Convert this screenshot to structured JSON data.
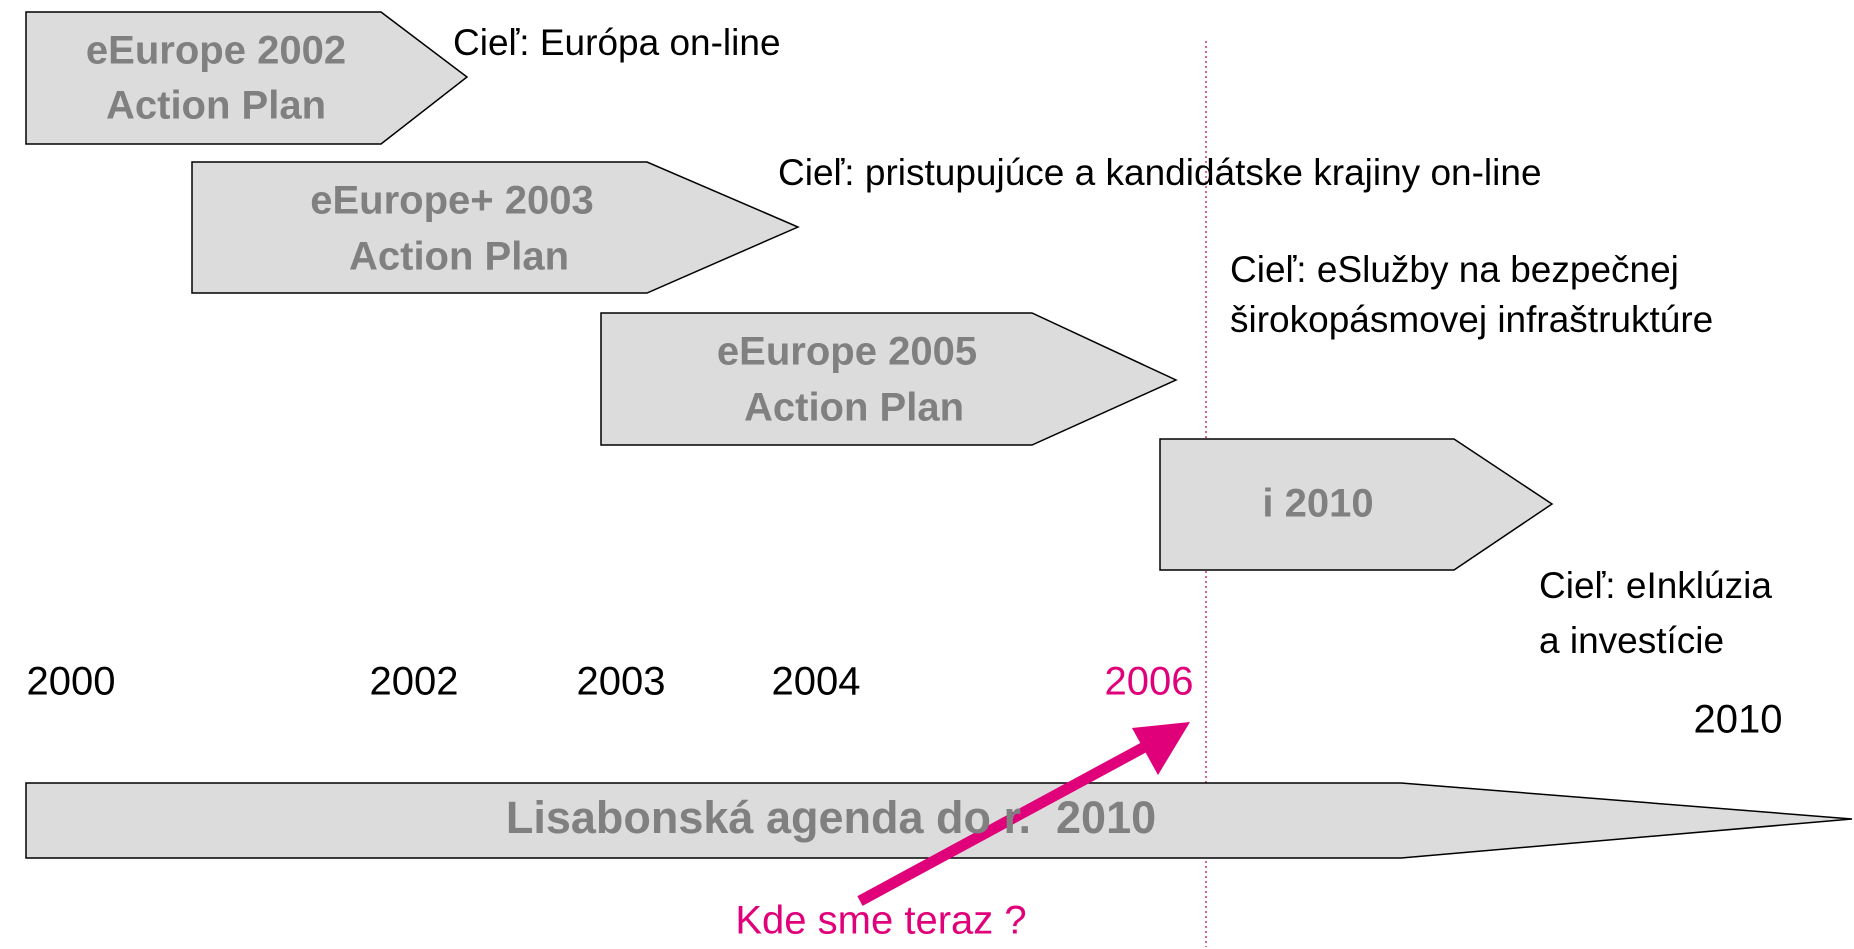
{
  "phases": [
    {
      "lines": [
        "eEurope 2002",
        "Action Plan"
      ],
      "goal": [
        "Cieľ: Európa on-line"
      ]
    },
    {
      "lines": [
        "eEurope+ 2003",
        "Action Plan"
      ],
      "goal": [
        "Cieľ: pristupujúce a kandidátske krajiny on-line"
      ]
    },
    {
      "lines": [
        "eEurope 2005",
        "Action Plan"
      ],
      "goal": [
        "Cieľ: eSlužby na bezpečnej",
        "širokopásmovej infraštruktúre"
      ]
    },
    {
      "lines": [
        "i 2010"
      ],
      "goal": [
        "Cieľ: eInklúzia",
        "a investície"
      ]
    }
  ],
  "years": [
    "2000",
    "2002",
    "2003",
    "2004",
    "2006",
    "2010"
  ],
  "agenda": "Lisabonská agenda do r.  2010",
  "note": "Kde sme teraz ?"
}
